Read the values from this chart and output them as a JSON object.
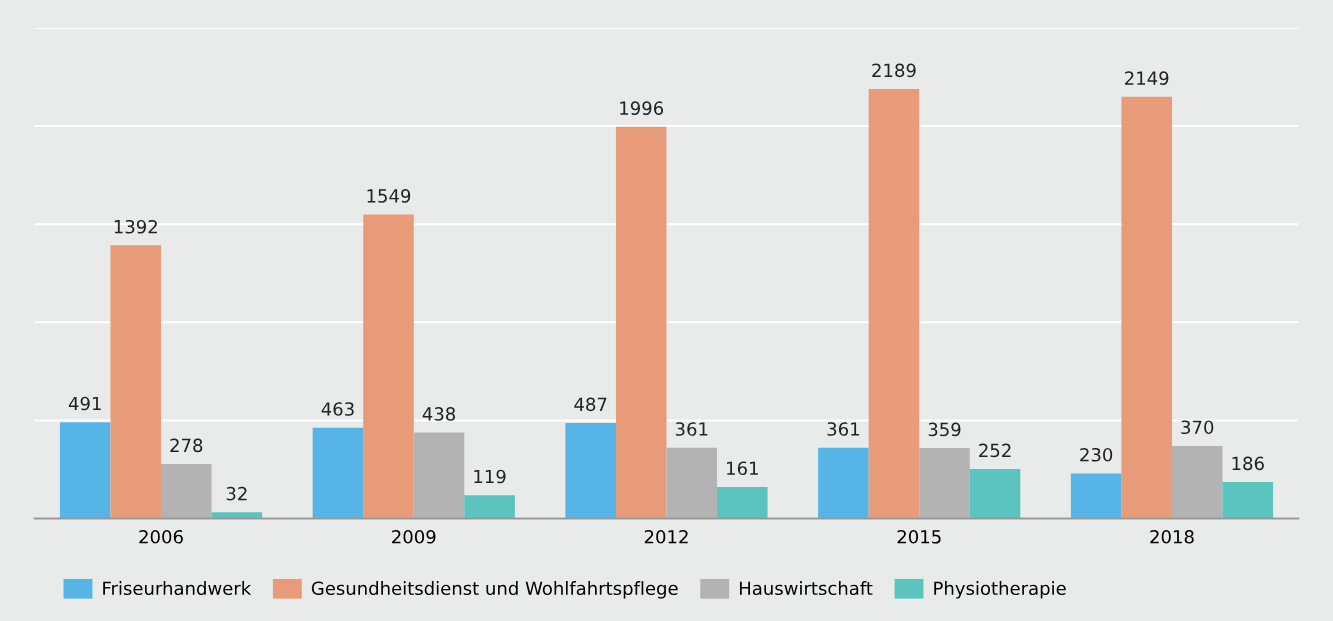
{
  "chart_data": {
    "type": "bar",
    "categories": [
      "2006",
      "2009",
      "2012",
      "2015",
      "2018"
    ],
    "series": [
      {
        "name": "Friseurhandwerk",
        "color": "#56b4e6",
        "values": [
          491,
          463,
          487,
          361,
          230
        ]
      },
      {
        "name": "Gesundheitsdienst und Wohlfahrtspflege",
        "color": "#e89b78",
        "values": [
          1392,
          1549,
          1996,
          2189,
          2149
        ]
      },
      {
        "name": "Hauswirtschaft",
        "color": "#b3b3b3",
        "values": [
          278,
          438,
          361,
          359,
          370
        ]
      },
      {
        "name": "Physiotherapie",
        "color": "#5bc4bf",
        "values": [
          32,
          119,
          161,
          252,
          186
        ]
      }
    ],
    "ylim": [
      0,
      2500
    ],
    "yticks": [
      {
        "value": 0,
        "label": null
      },
      {
        "value": 500,
        "label": null
      },
      {
        "value": 1000,
        "label": null
      },
      {
        "value": 1500,
        "label": null
      },
      {
        "value": 2000,
        "label": null
      },
      {
        "value": 2500,
        "label": null
      }
    ],
    "tick_labels": "x",
    "grid": "y",
    "data_labels": true,
    "legend": "bottom left"
  }
}
